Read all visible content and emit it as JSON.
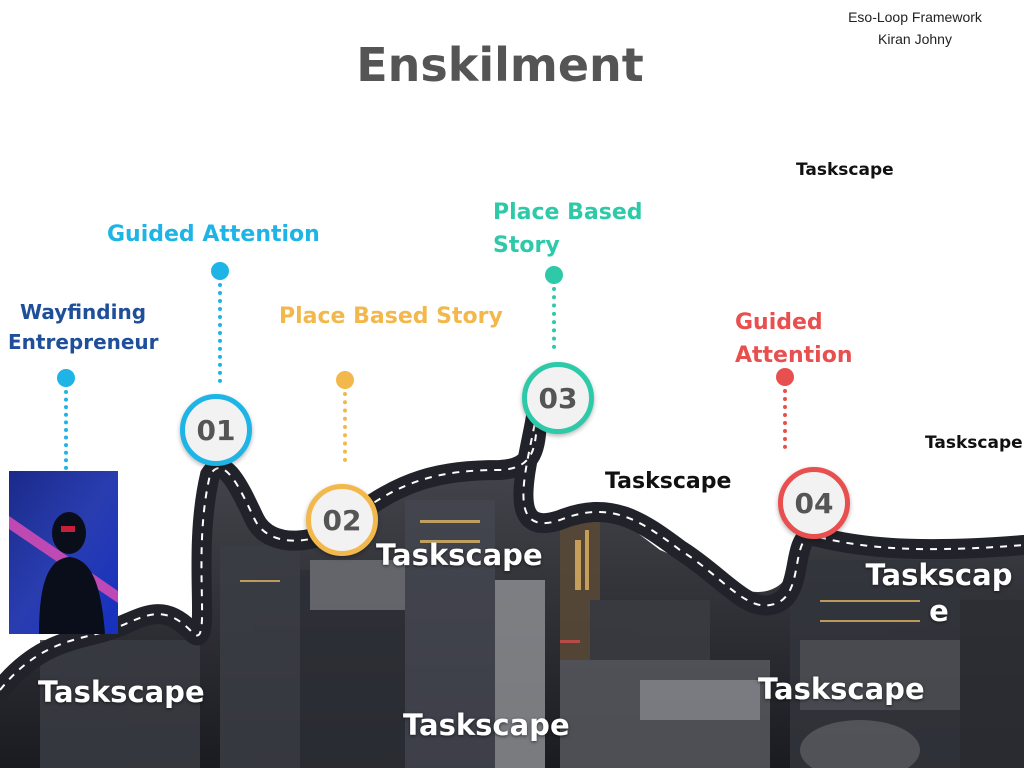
{
  "title": "Enskilment",
  "credit": {
    "framework": "Eso-Loop Framework",
    "author": "Kiran Johny"
  },
  "colors": {
    "blue": "#1eb4e6",
    "gold": "#f2b84b",
    "teal": "#2ec9a8",
    "red": "#e8504f",
    "navy": "#1f4f9a",
    "title": "#555555"
  },
  "persona": {
    "label_line1": "Wayfinding",
    "label_line2": "Entrepreneur",
    "image": "silhouette-portrait"
  },
  "steps": [
    {
      "number": "01",
      "label": "Guided Attention"
    },
    {
      "number": "02",
      "label": "Place Based Story"
    },
    {
      "number": "03",
      "label_line1": "Place Based",
      "label_line2": "Story"
    },
    {
      "number": "04",
      "label_line1": "Guided",
      "label_line2": "Attention"
    }
  ],
  "taskscapes": {
    "t1": "Taskscape",
    "t2": "Taskscape",
    "t3": "Taskscape",
    "t4": "Taskscape",
    "t5": "Taskscape",
    "t6": "Taskscap",
    "t6b": "e",
    "t7": "Taskscape",
    "t8": "Taskscape",
    "t9": "Taskscape"
  }
}
